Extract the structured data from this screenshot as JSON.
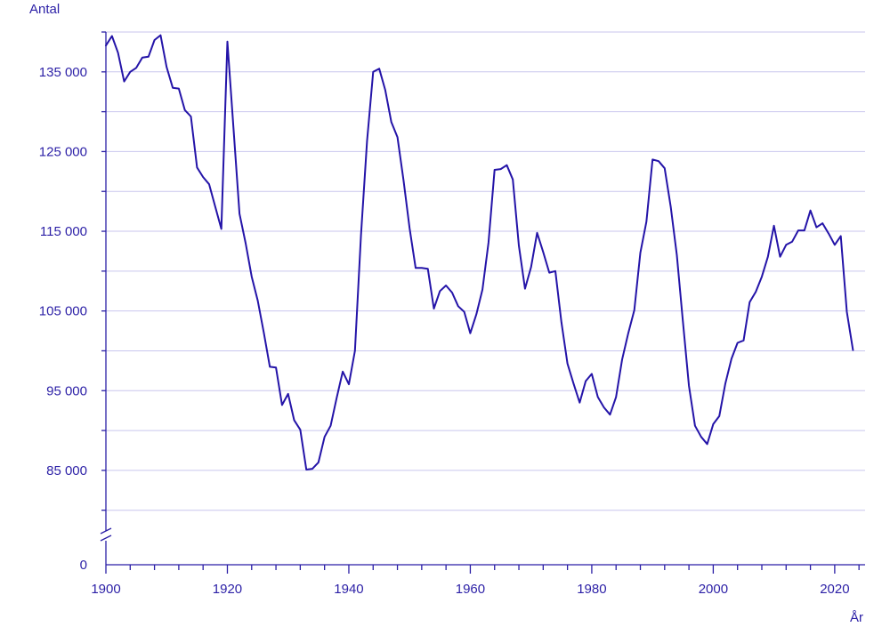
{
  "chart_data": {
    "type": "line",
    "ylabel": "Antal",
    "xlabel": "År",
    "title": "",
    "xlim": [
      1900,
      2025
    ],
    "ylim": [
      75000,
      140000
    ],
    "axis_break": true,
    "y_ticks": [
      {
        "value": 85000,
        "label": "85 000"
      },
      {
        "value": 95000,
        "label": "95 000"
      },
      {
        "value": 105000,
        "label": "105 000"
      },
      {
        "value": 115000,
        "label": "115 000"
      },
      {
        "value": 125000,
        "label": "125 000"
      },
      {
        "value": 135000,
        "label": "135 000"
      }
    ],
    "y_zero_label": "0",
    "grid_values": [
      80000,
      85000,
      90000,
      95000,
      100000,
      105000,
      110000,
      115000,
      120000,
      125000,
      130000,
      135000,
      140000
    ],
    "x_ticks": [
      {
        "value": 1900,
        "label": "1900"
      },
      {
        "value": 1920,
        "label": "1920"
      },
      {
        "value": 1940,
        "label": "1940"
      },
      {
        "value": 1960,
        "label": "1960"
      },
      {
        "value": 1980,
        "label": "1980"
      },
      {
        "value": 2000,
        "label": "2000"
      },
      {
        "value": 2020,
        "label": "2020"
      }
    ],
    "grid": true,
    "colors": {
      "line": "#2414a8",
      "axis": "#2b1fa6",
      "grid": "#c9c6ee",
      "text": "#2b1fa6"
    },
    "series": [
      {
        "x": [
          1900,
          1901,
          1902,
          1903,
          1904,
          1905,
          1906,
          1907,
          1908,
          1909,
          1910,
          1911,
          1912,
          1913,
          1914,
          1915,
          1916,
          1917,
          1918,
          1919,
          1920,
          1921,
          1922,
          1923,
          1924,
          1925,
          1926,
          1927,
          1928,
          1929,
          1930,
          1931,
          1932,
          1933,
          1934,
          1935,
          1936,
          1937,
          1938,
          1939,
          1940,
          1941,
          1942,
          1943,
          1944,
          1945,
          1946,
          1947,
          1948,
          1949,
          1950,
          1951,
          1952,
          1953,
          1954,
          1955,
          1956,
          1957,
          1958,
          1959,
          1960,
          1961,
          1962,
          1963,
          1964,
          1965,
          1966,
          1967,
          1968,
          1969,
          1970,
          1971,
          1972,
          1973,
          1974,
          1975,
          1976,
          1977,
          1978,
          1979,
          1980,
          1981,
          1982,
          1983,
          1984,
          1985,
          1986,
          1987,
          1988,
          1989,
          1990,
          1991,
          1992,
          1993,
          1994,
          1995,
          1996,
          1997,
          1998,
          1999,
          2000,
          2001,
          2002,
          2003,
          2004,
          2005,
          2006,
          2007,
          2008,
          2009,
          2010,
          2011,
          2012,
          2013,
          2014,
          2015,
          2016,
          2017,
          2018,
          2019,
          2020,
          2021,
          2022,
          2023
        ],
        "values": [
          138300,
          139500,
          137400,
          133800,
          135000,
          135500,
          136800,
          136900,
          139000,
          139600,
          135600,
          133000,
          132900,
          130200,
          129400,
          123000,
          121800,
          120900,
          118100,
          115300,
          138800,
          128000,
          117200,
          113500,
          109300,
          106300,
          102300,
          98000,
          97900,
          93200,
          94600,
          91300,
          90100,
          85100,
          85200,
          86000,
          89200,
          90600,
          94100,
          97400,
          95800,
          100000,
          114500,
          126300,
          135000,
          135400,
          132700,
          128700,
          126800,
          121400,
          115400,
          110400,
          110400,
          110300,
          105300,
          107500,
          108200,
          107300,
          105600,
          104900,
          102200,
          104600,
          107700,
          113600,
          122700,
          122800,
          123300,
          121500,
          113200,
          107800,
          110500,
          114800,
          112400,
          109800,
          110000,
          103600,
          98400,
          95900,
          93500,
          96200,
          97100,
          94200,
          92900,
          92000,
          94200,
          98900,
          102200,
          105100,
          112300,
          116200,
          124000,
          123800,
          122900,
          118100,
          112000,
          103700,
          95600,
          90600,
          89200,
          88300,
          90800,
          91800,
          95900,
          99000,
          101000,
          101300,
          106100,
          107400,
          109300,
          111800,
          115700,
          111800,
          113300,
          113700,
          115100,
          115100,
          117600,
          115500,
          116000,
          114700,
          113300,
          114400,
          104900,
          100100
        ]
      }
    ]
  }
}
